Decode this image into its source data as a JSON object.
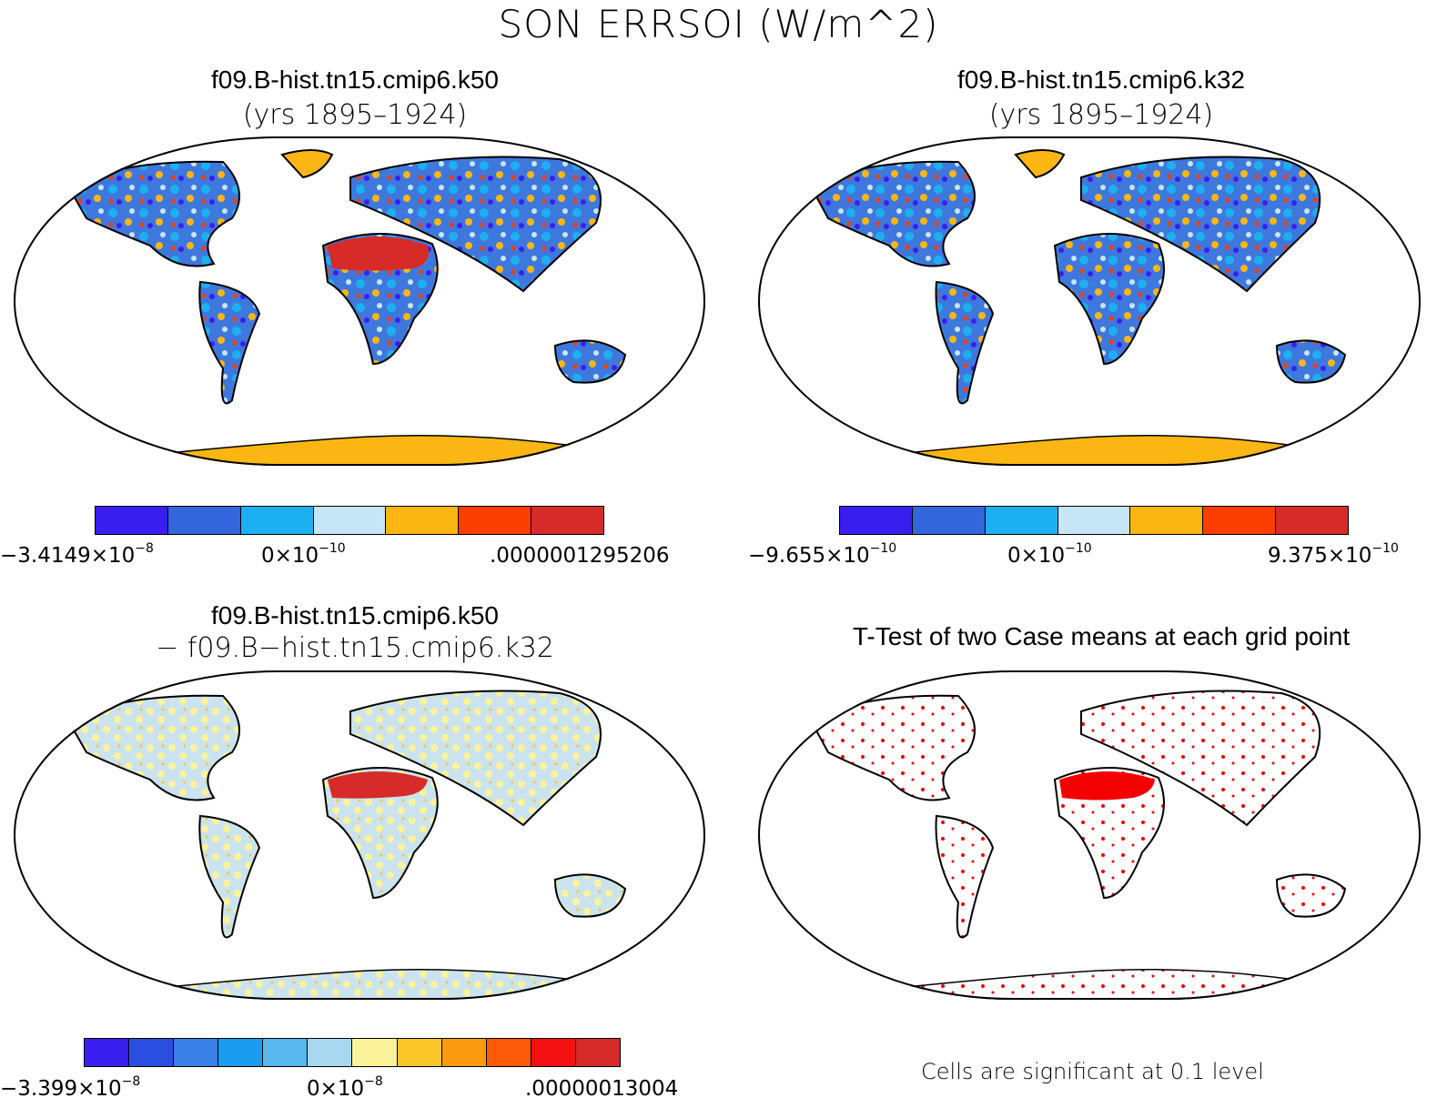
{
  "title": "SON ERRSOI (W/m^2)",
  "panels": [
    {
      "id": "k50",
      "title": "f09.B-hist.tn15.cmip6.k50",
      "subtitle": "(yrs 1895–1924)",
      "colorbar": {
        "colors": [
          "#3a1ef0",
          "#3366dd",
          "#1cb0f0",
          "#c6e5f5",
          "#fbb614",
          "#fc3d00",
          "#d62b28"
        ],
        "labels": {
          "min": {
            "mant": "−3.4149×10",
            "exp": "−8"
          },
          "mid": {
            "mant": "0×10",
            "exp": "−10"
          },
          "max": {
            "mant": ".0000001295206",
            "exp": ""
          }
        }
      }
    },
    {
      "id": "k32",
      "title": "f09.B-hist.tn15.cmip6.k32",
      "subtitle": "(yrs 1895–1924)",
      "colorbar": {
        "colors": [
          "#3a1ef0",
          "#3366dd",
          "#1cb0f0",
          "#c6e5f5",
          "#fbb614",
          "#fc3d00",
          "#d62b28"
        ],
        "labels": {
          "min": {
            "mant": "−9.655×10",
            "exp": "−10"
          },
          "mid": {
            "mant": "0×10",
            "exp": "−10"
          },
          "max": {
            "mant": "9.375×10",
            "exp": "−10"
          }
        }
      }
    },
    {
      "id": "diff",
      "title": "f09.B-hist.tn15.cmip6.k50",
      "subtitle": "− f09.B−hist.tn15.cmip6.k32",
      "colorbar": {
        "colors": [
          "#3a1ef0",
          "#2a4ee0",
          "#3a7ee8",
          "#1c9cf0",
          "#58b8ee",
          "#a8d8ef",
          "#fbf39a",
          "#fbc62a",
          "#fb9a10",
          "#fb5a08",
          "#f31010",
          "#d62b28"
        ],
        "labels": {
          "min": {
            "mant": "−3.399×10",
            "exp": "−8"
          },
          "mid": {
            "mant": "0×10",
            "exp": "−8"
          },
          "max": {
            "mant": ".00000013004",
            "exp": ""
          }
        }
      }
    },
    {
      "id": "ttest",
      "title": "T-Test of two Case means at each grid point",
      "note": "Cells are significant at 0.1 level"
    }
  ],
  "map_colors": {
    "k50_land": "#3f78dc",
    "k50_hot": "#d62b28",
    "k32_land": "#3f78dc",
    "diff_land": "#cbe3ee",
    "sig": "#f30000",
    "antarctica": "#fbb614"
  }
}
